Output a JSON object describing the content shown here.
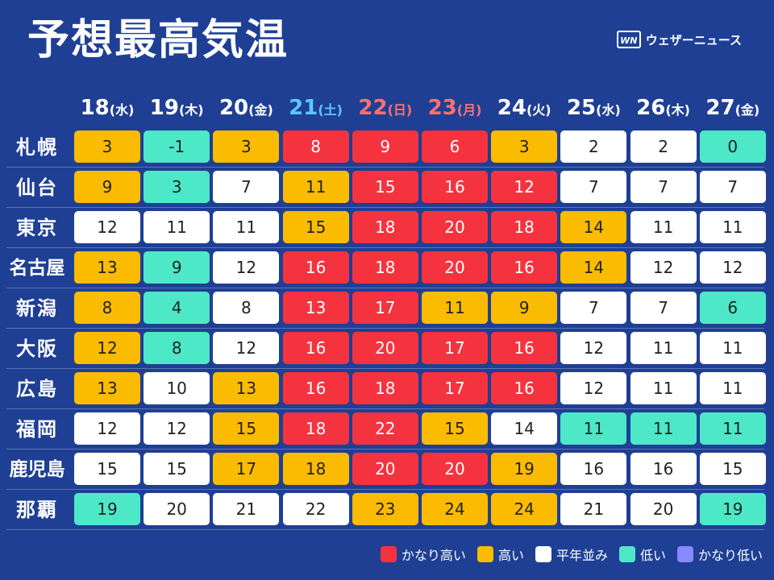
{
  "title": "予想最高気温",
  "brand": {
    "logo": "WN",
    "name": "ウェザーニュース"
  },
  "colors": {
    "vhigh": "#f5333f",
    "high": "#fbbb00",
    "norm": "#ffffff",
    "low": "#4de8c8",
    "vlow": "#8888ff",
    "background": "#1e3f94",
    "saturday": "#5ec8ff",
    "sunday": "#ff7070"
  },
  "dates": [
    {
      "day": "18",
      "dow": "(水)",
      "type": "weekday"
    },
    {
      "day": "19",
      "dow": "(木)",
      "type": "weekday"
    },
    {
      "day": "20",
      "dow": "(金)",
      "type": "weekday"
    },
    {
      "day": "21",
      "dow": "(土)",
      "type": "sat"
    },
    {
      "day": "22",
      "dow": "(日)",
      "type": "sun"
    },
    {
      "day": "23",
      "dow": "(月)",
      "type": "sun"
    },
    {
      "day": "24",
      "dow": "(火)",
      "type": "weekday"
    },
    {
      "day": "25",
      "dow": "(水)",
      "type": "weekday"
    },
    {
      "day": "26",
      "dow": "(木)",
      "type": "weekday"
    },
    {
      "day": "27",
      "dow": "(金)",
      "type": "weekday"
    }
  ],
  "rows": [
    {
      "city": "札幌",
      "values": [
        "3",
        "-1",
        "3",
        "8",
        "9",
        "6",
        "3",
        "2",
        "2",
        "0"
      ],
      "levels": [
        "high",
        "low",
        "high",
        "vhigh",
        "vhigh",
        "vhigh",
        "high",
        "norm",
        "norm",
        "low"
      ]
    },
    {
      "city": "仙台",
      "values": [
        "9",
        "3",
        "7",
        "11",
        "15",
        "16",
        "12",
        "7",
        "7",
        "7"
      ],
      "levels": [
        "high",
        "low",
        "norm",
        "high",
        "vhigh",
        "vhigh",
        "vhigh",
        "norm",
        "norm",
        "norm"
      ]
    },
    {
      "city": "東京",
      "values": [
        "12",
        "11",
        "11",
        "15",
        "18",
        "20",
        "18",
        "14",
        "11",
        "11"
      ],
      "levels": [
        "norm",
        "norm",
        "norm",
        "high",
        "vhigh",
        "vhigh",
        "vhigh",
        "high",
        "norm",
        "norm"
      ]
    },
    {
      "city": "名古屋",
      "values": [
        "13",
        "9",
        "12",
        "16",
        "18",
        "20",
        "16",
        "14",
        "12",
        "12"
      ],
      "levels": [
        "high",
        "low",
        "norm",
        "vhigh",
        "vhigh",
        "vhigh",
        "vhigh",
        "high",
        "norm",
        "norm"
      ]
    },
    {
      "city": "新潟",
      "values": [
        "8",
        "4",
        "8",
        "13",
        "17",
        "11",
        "9",
        "7",
        "7",
        "6"
      ],
      "levels": [
        "high",
        "low",
        "norm",
        "vhigh",
        "vhigh",
        "high",
        "high",
        "norm",
        "norm",
        "low"
      ]
    },
    {
      "city": "大阪",
      "values": [
        "12",
        "8",
        "12",
        "16",
        "20",
        "17",
        "16",
        "12",
        "11",
        "11"
      ],
      "levels": [
        "high",
        "low",
        "norm",
        "vhigh",
        "vhigh",
        "vhigh",
        "vhigh",
        "norm",
        "norm",
        "norm"
      ]
    },
    {
      "city": "広島",
      "values": [
        "13",
        "10",
        "13",
        "16",
        "18",
        "17",
        "16",
        "12",
        "11",
        "11"
      ],
      "levels": [
        "high",
        "norm",
        "high",
        "vhigh",
        "vhigh",
        "vhigh",
        "vhigh",
        "norm",
        "norm",
        "norm"
      ]
    },
    {
      "city": "福岡",
      "values": [
        "12",
        "12",
        "15",
        "18",
        "22",
        "15",
        "14",
        "11",
        "11",
        "11"
      ],
      "levels": [
        "norm",
        "norm",
        "high",
        "vhigh",
        "vhigh",
        "high",
        "norm",
        "low",
        "low",
        "low"
      ]
    },
    {
      "city": "鹿児島",
      "values": [
        "15",
        "15",
        "17",
        "18",
        "20",
        "20",
        "19",
        "16",
        "16",
        "15"
      ],
      "levels": [
        "norm",
        "norm",
        "high",
        "high",
        "vhigh",
        "vhigh",
        "high",
        "norm",
        "norm",
        "norm"
      ]
    },
    {
      "city": "那覇",
      "values": [
        "19",
        "20",
        "21",
        "22",
        "23",
        "24",
        "24",
        "21",
        "20",
        "19"
      ],
      "levels": [
        "low",
        "norm",
        "norm",
        "norm",
        "high",
        "high",
        "high",
        "norm",
        "norm",
        "low"
      ]
    }
  ],
  "legend": [
    {
      "label": "かなり高い",
      "level": "vhigh"
    },
    {
      "label": "高い",
      "level": "high"
    },
    {
      "label": "平年並み",
      "level": "norm"
    },
    {
      "label": "低い",
      "level": "low"
    },
    {
      "label": "かなり低い",
      "level": "vlow"
    }
  ]
}
